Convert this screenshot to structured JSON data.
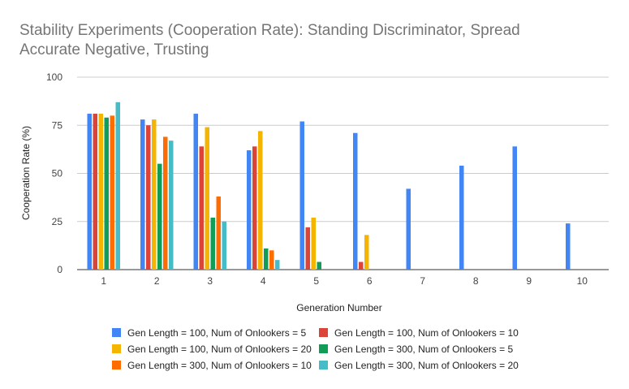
{
  "chart_data": {
    "type": "bar",
    "title_lines": [
      "Stability Experiments (Cooperation Rate): Standing Discriminator, Spread",
      "Accurate Negative, Trusting"
    ],
    "xlabel": "Generation Number",
    "ylabel": "Cooperation Rate (%)",
    "ylim": [
      0,
      100
    ],
    "yticks": [
      "0",
      "25",
      "50",
      "75",
      "100"
    ],
    "categories": [
      "1",
      "2",
      "3",
      "4",
      "5",
      "6",
      "7",
      "8",
      "9",
      "10"
    ],
    "grid": true,
    "legend_position": "bottom",
    "series": [
      {
        "name": "Gen Length = 100, Num of Onlookers = 5",
        "color": "#4285f4",
        "values": [
          81,
          78,
          81,
          62,
          77,
          71,
          42,
          54,
          64,
          24
        ]
      },
      {
        "name": "Gen Length = 100, Num of Onlookers = 10",
        "color": "#db4437",
        "values": [
          81,
          75,
          64,
          64,
          22,
          4,
          0,
          0,
          0,
          0
        ]
      },
      {
        "name": "Gen Length = 100, Num of Onlookers = 20",
        "color": "#f4b400",
        "values": [
          81,
          78,
          74,
          72,
          27,
          18,
          0,
          0,
          0,
          0
        ]
      },
      {
        "name": "Gen Length = 300, Num of Onlookers = 5",
        "color": "#0f9d58",
        "values": [
          79,
          55,
          27,
          11,
          4,
          0,
          0,
          0,
          0,
          0
        ]
      },
      {
        "name": "Gen Length = 300, Num of Onlookers = 10",
        "color": "#ff6d00",
        "values": [
          80,
          69,
          38,
          10,
          0,
          0,
          0,
          0,
          0,
          0
        ]
      },
      {
        "name": "Gen Length = 300, Num of Onlookers = 20",
        "color": "#46bdc6",
        "values": [
          87,
          67,
          25,
          5,
          0,
          0,
          0,
          0,
          0,
          0
        ]
      }
    ]
  }
}
